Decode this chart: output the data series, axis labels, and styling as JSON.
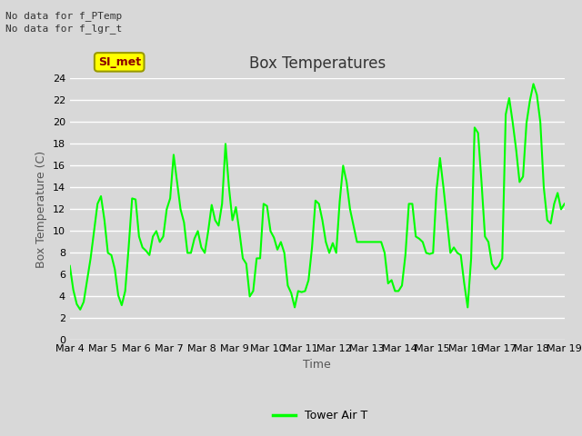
{
  "title": "Box Temperatures",
  "ylabel": "Box Temperature (C)",
  "xlabel": "Time",
  "no_data_lines": [
    "No data for f_PTemp",
    "No data for f_lgr_t"
  ],
  "si_met_label": "SI_met",
  "ylim": [
    0,
    24
  ],
  "yticks": [
    0,
    2,
    4,
    6,
    8,
    10,
    12,
    14,
    16,
    18,
    20,
    22,
    24
  ],
  "xtick_labels": [
    "Mar 4",
    "Mar 5",
    "Mar 6",
    "Mar 7",
    "Mar 8",
    "Mar 9",
    "Mar 10",
    "Mar 11",
    "Mar 12",
    "Mar 13",
    "Mar 14",
    "Mar 15",
    "Mar 16",
    "Mar 17",
    "Mar 18",
    "Mar 19"
  ],
  "line_color": "#00FF00",
  "line_width": 1.5,
  "background_color": "#D8D8D8",
  "plot_bg_color": "#D8D8D8",
  "grid_color": "#FFFFFF",
  "legend_label": "Tower Air T",
  "title_fontsize": 12,
  "axis_label_fontsize": 9,
  "tick_fontsize": 8,
  "y_values": [
    6.8,
    4.6,
    3.3,
    2.8,
    3.5,
    5.5,
    7.5,
    10.0,
    12.5,
    13.2,
    11.0,
    8.0,
    7.8,
    6.5,
    4.1,
    3.2,
    4.5,
    8.5,
    13.0,
    12.9,
    9.5,
    8.5,
    8.2,
    7.8,
    9.5,
    10.0,
    9.0,
    9.5,
    12.0,
    13.0,
    17.0,
    14.5,
    12.0,
    10.8,
    8.0,
    8.0,
    9.3,
    10.0,
    8.5,
    8.0,
    10.0,
    12.4,
    11.0,
    10.5,
    12.5,
    18.0,
    14.0,
    11.0,
    12.2,
    10.0,
    7.5,
    7.0,
    4.0,
    4.5,
    7.5,
    7.5,
    12.5,
    12.3,
    10.0,
    9.4,
    8.3,
    9.0,
    8.0,
    5.0,
    4.3,
    3.0,
    4.5,
    4.4,
    4.5,
    5.5,
    8.5,
    12.8,
    12.5,
    11.0,
    9.0,
    8.0,
    8.9,
    8.0,
    12.7,
    16.0,
    14.5,
    12.0,
    10.5,
    9.0,
    9.0,
    9.0,
    9.0,
    9.0,
    9.0,
    9.0,
    9.0,
    8.0,
    5.2,
    5.5,
    4.5,
    4.5,
    5.0,
    7.8,
    12.5,
    12.5,
    9.5,
    9.3,
    9.0,
    8.0,
    7.9,
    8.0,
    13.8,
    16.7,
    14.0,
    11.0,
    8.0,
    8.5,
    8.0,
    7.8,
    5.2,
    3.0,
    7.5,
    19.5,
    19.0,
    14.5,
    9.5,
    9.0,
    7.0,
    6.5,
    6.8,
    7.5,
    20.7,
    22.2,
    20.0,
    17.5,
    14.5,
    15.0,
    19.9,
    22.0,
    23.5,
    22.5,
    20.0,
    14.0,
    11.0,
    10.7,
    12.5,
    13.5,
    12.0,
    12.5
  ]
}
